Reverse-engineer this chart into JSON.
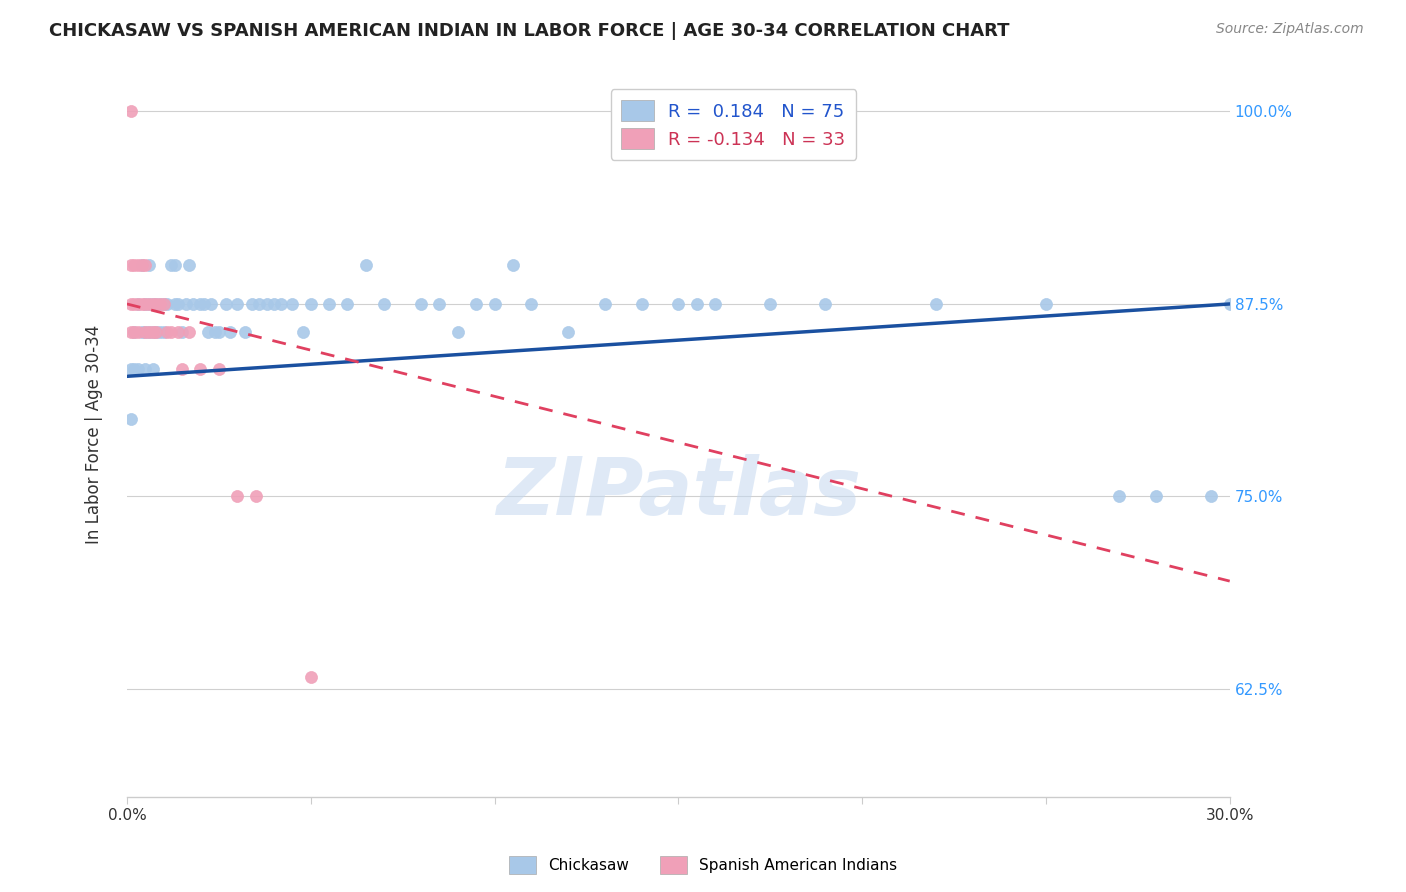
{
  "title": "CHICKASAW VS SPANISH AMERICAN INDIAN IN LABOR FORCE | AGE 30-34 CORRELATION CHART",
  "source": "Source: ZipAtlas.com",
  "ylabel": "In Labor Force | Age 30-34",
  "x_min": 0.0,
  "x_max": 0.3,
  "y_min": 0.555,
  "y_max": 1.025,
  "y_ticks": [
    0.625,
    0.75,
    0.875,
    1.0
  ],
  "y_tick_labels": [
    "62.5%",
    "75.0%",
    "87.5%",
    "100.0%"
  ],
  "chickasaw_R": 0.184,
  "chickasaw_N": 75,
  "spanish_R": -0.134,
  "spanish_N": 33,
  "chickasaw_color": "#a8c8e8",
  "spanish_color": "#f0a0b8",
  "chickasaw_line_color": "#1a50a0",
  "spanish_line_color": "#e04060",
  "watermark": "ZIPatlas",
  "legend_text_blue": "R =  0.184   N = 75",
  "legend_text_pink": "R = -0.134   N = 33",
  "chickasaw_x": [
    0.001,
    0.001,
    0.002,
    0.002,
    0.003,
    0.003,
    0.004,
    0.004,
    0.005,
    0.005,
    0.005,
    0.006,
    0.006,
    0.006,
    0.007,
    0.007,
    0.007,
    0.008,
    0.008,
    0.009,
    0.009,
    0.01,
    0.01,
    0.011,
    0.012,
    0.013,
    0.013,
    0.014,
    0.015,
    0.016,
    0.017,
    0.018,
    0.02,
    0.021,
    0.022,
    0.023,
    0.024,
    0.025,
    0.027,
    0.028,
    0.03,
    0.032,
    0.034,
    0.036,
    0.038,
    0.04,
    0.042,
    0.045,
    0.048,
    0.05,
    0.055,
    0.06,
    0.065,
    0.07,
    0.08,
    0.085,
    0.09,
    0.095,
    0.1,
    0.105,
    0.11,
    0.12,
    0.13,
    0.14,
    0.15,
    0.155,
    0.16,
    0.175,
    0.19,
    0.22,
    0.25,
    0.27,
    0.28,
    0.295,
    0.3
  ],
  "chickasaw_y": [
    0.833,
    0.8,
    0.857,
    0.833,
    0.875,
    0.833,
    0.9,
    0.857,
    0.875,
    0.857,
    0.833,
    0.9,
    0.875,
    0.857,
    0.875,
    0.857,
    0.833,
    0.875,
    0.857,
    0.875,
    0.857,
    0.875,
    0.857,
    0.875,
    0.9,
    0.9,
    0.875,
    0.875,
    0.857,
    0.875,
    0.9,
    0.875,
    0.875,
    0.875,
    0.857,
    0.875,
    0.857,
    0.857,
    0.875,
    0.857,
    0.875,
    0.857,
    0.875,
    0.875,
    0.875,
    0.875,
    0.875,
    0.875,
    0.857,
    0.875,
    0.875,
    0.875,
    0.9,
    0.875,
    0.875,
    0.875,
    0.857,
    0.875,
    0.875,
    0.9,
    0.875,
    0.857,
    0.875,
    0.875,
    0.875,
    0.875,
    0.875,
    0.875,
    0.875,
    0.875,
    0.875,
    0.75,
    0.75,
    0.75,
    0.875
  ],
  "spanish_x": [
    0.001,
    0.001,
    0.001,
    0.001,
    0.002,
    0.002,
    0.002,
    0.003,
    0.003,
    0.003,
    0.004,
    0.004,
    0.005,
    0.005,
    0.005,
    0.006,
    0.006,
    0.007,
    0.007,
    0.008,
    0.008,
    0.009,
    0.01,
    0.011,
    0.012,
    0.014,
    0.015,
    0.017,
    0.02,
    0.025,
    0.03,
    0.035,
    0.05
  ],
  "spanish_y": [
    1.0,
    0.9,
    0.875,
    0.857,
    0.9,
    0.875,
    0.857,
    0.9,
    0.875,
    0.857,
    0.9,
    0.875,
    0.9,
    0.875,
    0.857,
    0.875,
    0.857,
    0.875,
    0.857,
    0.875,
    0.857,
    0.875,
    0.875,
    0.857,
    0.857,
    0.857,
    0.833,
    0.857,
    0.833,
    0.833,
    0.75,
    0.75,
    0.633
  ],
  "chick_line_x0": 0.0,
  "chick_line_y0": 0.828,
  "chick_line_x1": 0.3,
  "chick_line_y1": 0.875,
  "span_line_x0": 0.0,
  "span_line_y0": 0.875,
  "span_line_x1": 0.3,
  "span_line_y1": 0.695
}
